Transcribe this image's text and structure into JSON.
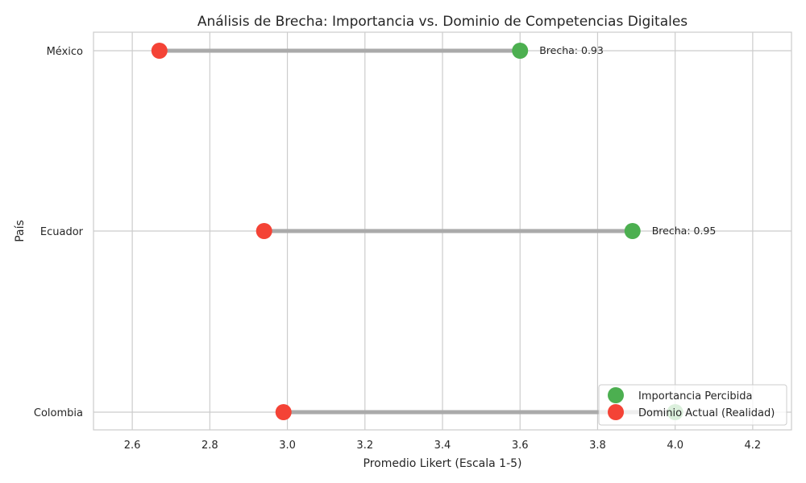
{
  "chart_data": {
    "type": "dumbbell",
    "title": "Análisis de Brecha: Importancia vs. Dominio de Competencias Digitales",
    "xlabel": "Promedio Likert (Escala 1-5)",
    "ylabel": "País",
    "xlim": [
      2.5,
      4.3
    ],
    "xticks": [
      "2.6",
      "2.8",
      "3.0",
      "3.2",
      "3.4",
      "3.6",
      "3.8",
      "4.0",
      "4.2"
    ],
    "categories": [
      "México",
      "Ecuador",
      "Colombia"
    ],
    "series": [
      {
        "name": "Importancia Percibida",
        "color": "#4caf50",
        "values": [
          3.6,
          3.89,
          4.0
        ]
      },
      {
        "name": "Dominio Actual (Realidad)",
        "color": "#f44336",
        "values": [
          2.67,
          2.94,
          2.99
        ]
      }
    ],
    "annotations": [
      "Brecha: 0.93",
      "Brecha: 0.95",
      ""
    ],
    "connector_color": "#aaaaaa",
    "grid": true,
    "legend_position": "lower-right"
  }
}
